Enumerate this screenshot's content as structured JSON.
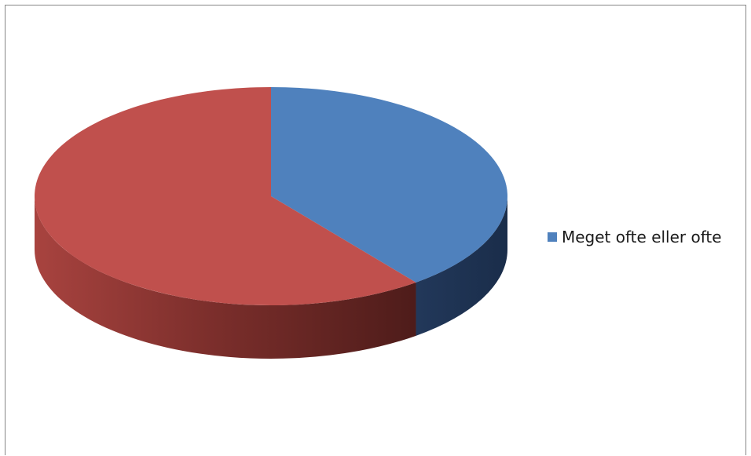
{
  "chart_data": {
    "type": "pie",
    "title": "",
    "slices": [
      {
        "label": "Meget ofte eller ofte",
        "value": 39.5,
        "color": "#4F81BD",
        "in_legend": true
      },
      {
        "label": "",
        "value": 60.5,
        "color": "#C0504D",
        "in_legend": false
      }
    ],
    "legend_position": "right",
    "three_d": true
  }
}
